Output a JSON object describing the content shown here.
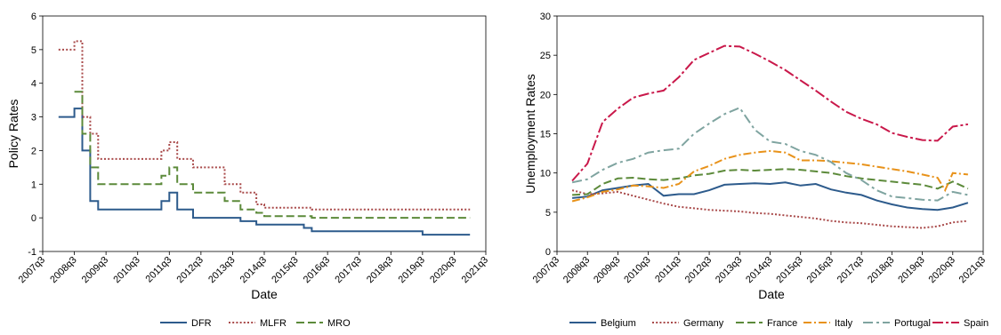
{
  "colors": {
    "DFR": "#2d5b8c",
    "MLFR": "#a94a4a",
    "MRO": "#5c8a3a",
    "Belgium": "#2d5b8c",
    "Germany": "#a94a4a",
    "France": "#5c8a3a",
    "Italy": "#e8921a",
    "Portugal": "#7fa4a0",
    "Spain": "#c9184a"
  },
  "chart_data": [
    {
      "type": "line",
      "title": "",
      "xlabel": "Date",
      "ylabel": "Policy Rates",
      "xlim": [
        "2007q3",
        "2021q3"
      ],
      "ylim": [
        -1,
        6
      ],
      "yticks": [
        "-1",
        "0",
        "1",
        "2",
        "3",
        "4",
        "5",
        "6"
      ],
      "xticks": [
        "2007q3",
        "2008q3",
        "2009q3",
        "2010q3",
        "2011q3",
        "2012q3",
        "2013q3",
        "2014q3",
        "2015q3",
        "2016q3",
        "2017q3",
        "2018q3",
        "2019q3",
        "2020q3",
        "2021q3"
      ],
      "grid": false,
      "legend": "bottom",
      "series": [
        {
          "name": "DFR",
          "style": "solid",
          "x": [
            "2008q1",
            "2008q3",
            "2008q4",
            "2009q1",
            "2009q2",
            "2011q2",
            "2011q3",
            "2011q4",
            "2012q2",
            "2013q4",
            "2014q2",
            "2014q3",
            "2015q4",
            "2016q1",
            "2019q3",
            "2021q1"
          ],
          "values": [
            3.0,
            3.25,
            2.0,
            0.5,
            0.25,
            0.5,
            0.75,
            0.25,
            0.0,
            -0.1,
            -0.2,
            -0.2,
            -0.3,
            -0.4,
            -0.5,
            -0.5
          ]
        },
        {
          "name": "MLFR",
          "style": "dotted",
          "x": [
            "2008q1",
            "2008q3",
            "2008q4",
            "2009q1",
            "2009q2",
            "2011q2",
            "2011q3",
            "2011q4",
            "2012q2",
            "2013q2",
            "2013q4",
            "2014q2",
            "2014q3",
            "2016q1",
            "2021q1"
          ],
          "values": [
            5.0,
            5.25,
            3.0,
            2.5,
            1.75,
            2.0,
            2.25,
            1.75,
            1.5,
            1.0,
            0.75,
            0.4,
            0.3,
            0.25,
            0.25
          ]
        },
        {
          "name": "MRO",
          "style": "dashed",
          "x": [
            "2008q3",
            "2008q4",
            "2009q1",
            "2009q2",
            "2011q2",
            "2011q3",
            "2011q4",
            "2012q2",
            "2013q2",
            "2013q4",
            "2014q2",
            "2014q3",
            "2016q1",
            "2021q1"
          ],
          "values": [
            3.75,
            2.5,
            1.5,
            1.0,
            1.25,
            1.5,
            1.0,
            0.75,
            0.5,
            0.25,
            0.15,
            0.05,
            0.0,
            0.0
          ]
        }
      ]
    },
    {
      "type": "line",
      "title": "",
      "xlabel": "Date",
      "ylabel": "Unemployment Rates",
      "xlim": [
        "2007q3",
        "2021q3"
      ],
      "ylim": [
        0,
        30
      ],
      "yticks": [
        "0",
        "5",
        "10",
        "15",
        "20",
        "25",
        "30"
      ],
      "xticks": [
        "2007q3",
        "2008q3",
        "2009q3",
        "2010q3",
        "2011q3",
        "2012q3",
        "2013q3",
        "2014q3",
        "2015q3",
        "2016q3",
        "2017q3",
        "2018q3",
        "2019q3",
        "2020q3",
        "2021q3"
      ],
      "grid": false,
      "legend": "bottom",
      "series": [
        {
          "name": "Belgium",
          "style": "solid",
          "x": [
            "2008q1",
            "2008q3",
            "2009q1",
            "2009q3",
            "2010q1",
            "2010q3",
            "2011q1",
            "2011q3",
            "2012q1",
            "2012q3",
            "2013q1",
            "2013q3",
            "2014q1",
            "2014q3",
            "2015q1",
            "2015q3",
            "2016q1",
            "2016q3",
            "2017q1",
            "2017q3",
            "2018q1",
            "2018q3",
            "2019q1",
            "2019q3",
            "2020q1",
            "2020q3",
            "2021q1"
          ],
          "values": [
            6.8,
            7.0,
            7.8,
            8.1,
            8.4,
            8.6,
            7.1,
            7.3,
            7.3,
            7.8,
            8.5,
            8.6,
            8.7,
            8.6,
            8.8,
            8.4,
            8.6,
            7.9,
            7.5,
            7.2,
            6.5,
            6.0,
            5.6,
            5.4,
            5.3,
            5.6,
            6.2
          ]
        },
        {
          "name": "Germany",
          "style": "dotted",
          "x": [
            "2008q1",
            "2008q3",
            "2009q1",
            "2009q3",
            "2010q1",
            "2010q3",
            "2011q1",
            "2011q3",
            "2012q1",
            "2012q3",
            "2013q1",
            "2013q3",
            "2014q1",
            "2014q3",
            "2015q1",
            "2015q3",
            "2016q1",
            "2016q3",
            "2017q1",
            "2017q3",
            "2018q1",
            "2018q3",
            "2019q1",
            "2019q3",
            "2020q1",
            "2020q3",
            "2021q1"
          ],
          "values": [
            7.8,
            7.3,
            7.4,
            7.6,
            7.1,
            6.6,
            6.1,
            5.7,
            5.5,
            5.3,
            5.2,
            5.1,
            4.9,
            4.8,
            4.6,
            4.4,
            4.2,
            3.9,
            3.7,
            3.6,
            3.4,
            3.2,
            3.1,
            3.0,
            3.2,
            3.7,
            3.9
          ]
        },
        {
          "name": "France",
          "style": "dashed",
          "x": [
            "2008q1",
            "2008q3",
            "2009q1",
            "2009q3",
            "2010q1",
            "2010q3",
            "2011q1",
            "2011q3",
            "2012q1",
            "2012q3",
            "2013q1",
            "2013q3",
            "2014q1",
            "2014q3",
            "2015q1",
            "2015q3",
            "2016q1",
            "2016q3",
            "2017q1",
            "2017q3",
            "2018q1",
            "2018q3",
            "2019q1",
            "2019q3",
            "2020q1",
            "2020q3",
            "2021q1"
          ],
          "values": [
            7.2,
            7.3,
            8.6,
            9.3,
            9.4,
            9.2,
            9.1,
            9.3,
            9.7,
            9.9,
            10.3,
            10.4,
            10.3,
            10.4,
            10.5,
            10.4,
            10.2,
            10.0,
            9.6,
            9.3,
            9.1,
            8.9,
            8.7,
            8.5,
            8.0,
            8.9,
            8.0
          ]
        },
        {
          "name": "Italy",
          "style": "dashdot",
          "x": [
            "2008q1",
            "2008q3",
            "2009q1",
            "2009q3",
            "2010q1",
            "2010q3",
            "2011q1",
            "2011q3",
            "2012q1",
            "2012q3",
            "2013q1",
            "2013q3",
            "2014q1",
            "2014q3",
            "2015q1",
            "2015q3",
            "2016q1",
            "2016q3",
            "2017q1",
            "2017q3",
            "2018q1",
            "2018q3",
            "2019q1",
            "2019q3",
            "2020q1",
            "2020q2",
            "2020q3",
            "2021q1"
          ],
          "values": [
            6.4,
            6.9,
            7.6,
            7.9,
            8.4,
            8.3,
            8.1,
            8.6,
            10.2,
            10.9,
            11.8,
            12.3,
            12.6,
            12.8,
            12.6,
            11.6,
            11.6,
            11.5,
            11.3,
            11.1,
            10.8,
            10.5,
            10.2,
            9.8,
            9.4,
            7.8,
            10.0,
            9.8
          ]
        },
        {
          "name": "Portugal",
          "style": "longdash",
          "x": [
            "2008q1",
            "2008q3",
            "2009q1",
            "2009q3",
            "2010q1",
            "2010q3",
            "2011q1",
            "2011q3",
            "2012q1",
            "2012q3",
            "2013q1",
            "2013q3",
            "2014q1",
            "2014q3",
            "2015q1",
            "2015q3",
            "2016q1",
            "2016q3",
            "2017q1",
            "2017q3",
            "2018q1",
            "2018q3",
            "2019q1",
            "2019q3",
            "2020q1",
            "2020q3",
            "2021q1"
          ],
          "values": [
            8.8,
            9.2,
            10.4,
            11.3,
            11.8,
            12.6,
            12.9,
            13.1,
            15.0,
            16.3,
            17.5,
            18.3,
            15.5,
            14.0,
            13.7,
            12.8,
            12.3,
            11.4,
            10.0,
            9.1,
            7.8,
            7.0,
            6.8,
            6.6,
            6.5,
            7.6,
            7.2
          ]
        },
        {
          "name": "Spain",
          "style": "longdashdot",
          "x": [
            "2008q1",
            "2008q3",
            "2009q1",
            "2009q3",
            "2010q1",
            "2010q3",
            "2011q1",
            "2011q3",
            "2012q1",
            "2012q3",
            "2013q1",
            "2013q3",
            "2014q1",
            "2014q3",
            "2015q1",
            "2015q3",
            "2016q1",
            "2016q3",
            "2017q1",
            "2017q3",
            "2018q1",
            "2018q3",
            "2019q1",
            "2019q3",
            "2020q1",
            "2020q3",
            "2021q1"
          ],
          "values": [
            9.0,
            11.2,
            16.5,
            18.2,
            19.6,
            20.1,
            20.5,
            22.2,
            24.4,
            25.3,
            26.2,
            26.1,
            25.2,
            24.2,
            23.1,
            21.8,
            20.5,
            19.1,
            17.8,
            16.9,
            16.2,
            15.1,
            14.6,
            14.2,
            14.1,
            15.9,
            16.2
          ]
        }
      ]
    }
  ]
}
